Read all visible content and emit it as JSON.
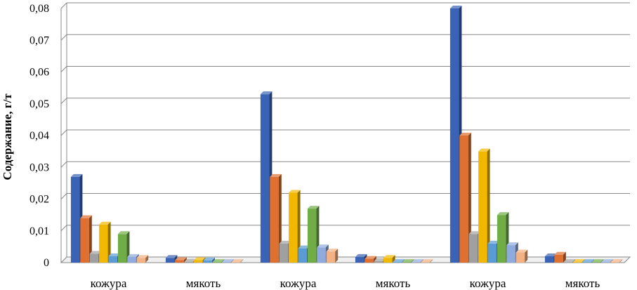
{
  "chart_data": {
    "type": "bar",
    "title": "",
    "xlabel": "",
    "ylabel": "Содержание, г/т",
    "ylim": [
      0,
      0.08
    ],
    "yticks": [
      "0",
      "0,01",
      "0,02",
      "0,03",
      "0,04",
      "0,05",
      "0,06",
      "0,07",
      "0,08"
    ],
    "categories": [
      "кожура",
      "мякоть",
      "кожура",
      "мякоть",
      "кожура",
      "мякоть"
    ],
    "grid": true,
    "legend": "none",
    "series": [
      {
        "color": "#3a63b5",
        "values": [
          0.027,
          0.0015,
          0.053,
          0.0018,
          0.08,
          0.002
        ]
      },
      {
        "color": "#e07030",
        "values": [
          0.014,
          0.0008,
          0.027,
          0.0012,
          0.04,
          0.0025
        ]
      },
      {
        "color": "#a0a0a0",
        "values": [
          0.0028,
          0.0003,
          0.006,
          0.0005,
          0.009,
          0.0002
        ]
      },
      {
        "color": "#f2b800",
        "values": [
          0.012,
          0.0008,
          0.022,
          0.0015,
          0.035,
          0.0002
        ]
      },
      {
        "color": "#5b9bd5",
        "values": [
          0.002,
          0.0007,
          0.0045,
          0.0002,
          0.006,
          0.0002
        ]
      },
      {
        "color": "#70ad47",
        "values": [
          0.009,
          0.0002,
          0.017,
          0.0002,
          0.015,
          0.0002
        ]
      },
      {
        "color": "#8faadc",
        "values": [
          0.0018,
          0.0002,
          0.0048,
          0.0002,
          0.0055,
          0.0002
        ]
      },
      {
        "color": "#f4b183",
        "values": [
          0.0015,
          0.0002,
          0.0035,
          0.0002,
          0.0032,
          0.0002
        ]
      }
    ]
  }
}
